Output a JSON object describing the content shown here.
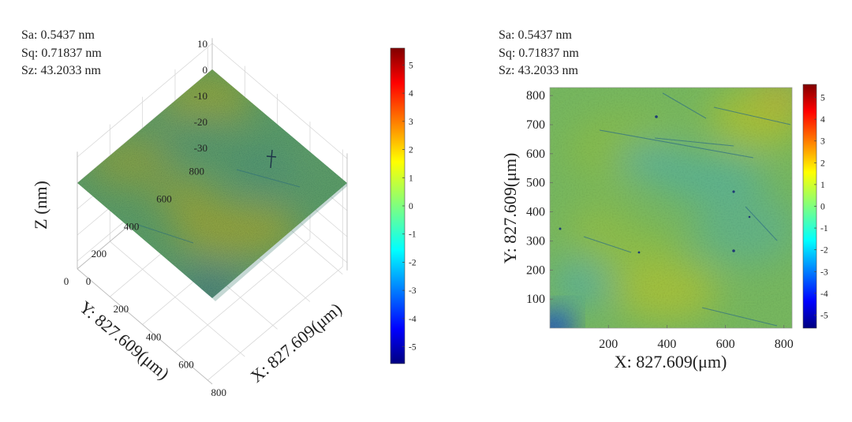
{
  "stats": {
    "left": [
      "Sa: 0.5437 nm",
      "Sq: 0.71837 nm",
      "Sz: 43.2033 nm"
    ],
    "right": [
      "Sa: 0.5437 nm",
      "Sq: 0.71837 nm",
      "Sz: 43.2033 nm"
    ]
  },
  "chart_data": [
    {
      "type": "heatmap",
      "view": "3d-surface",
      "title": "",
      "xlabel": "X: 827.609(μm)",
      "ylabel": "Y: 827.609(μm)",
      "zlabel": "Z (nm)",
      "x_ticks": [
        "200",
        "400",
        "600",
        "800"
      ],
      "y_ticks": [
        "0",
        "200",
        "400",
        "600",
        "800"
      ],
      "origin_x_tick": "0",
      "z_ticks": [
        "10",
        "0",
        "-10",
        "-20",
        "-30"
      ],
      "xlim": [
        0,
        827.609
      ],
      "ylim": [
        0,
        827.609
      ],
      "zlim": [
        -33,
        12
      ],
      "colorbar": {
        "ticks": [
          "5",
          "4",
          "3",
          "2",
          "1",
          "0",
          "-1",
          "-2",
          "-3",
          "-4",
          "-5"
        ],
        "range": [
          -5.6,
          5.6
        ]
      },
      "colormap": "jet",
      "grid": true
    },
    {
      "type": "heatmap",
      "view": "2d-top",
      "title": "",
      "xlabel": "X: 827.609(μm)",
      "ylabel": "Y: 827.609(μm)",
      "x_ticks": [
        "200",
        "400",
        "600",
        "800"
      ],
      "y_ticks": [
        "800",
        "700",
        "600",
        "500",
        "400",
        "300",
        "200",
        "100"
      ],
      "xlim": [
        0,
        827.609
      ],
      "ylim": [
        0,
        827.609
      ],
      "colorbar": {
        "ticks": [
          "5",
          "4",
          "3",
          "2",
          "1",
          "0",
          "-1",
          "-2",
          "-3",
          "-4",
          "-5"
        ],
        "range": [
          -5.6,
          5.6
        ]
      },
      "colormap": "jet"
    }
  ]
}
